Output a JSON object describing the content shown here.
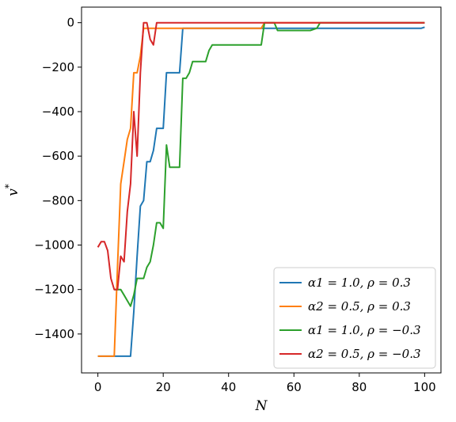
{
  "chart_data": {
    "type": "line",
    "title": "",
    "xlabel": "N",
    "ylabel": "v*",
    "xlim": [
      -5,
      105
    ],
    "ylim": [
      -1575,
      70
    ],
    "xticks": [
      0,
      20,
      40,
      60,
      80,
      100
    ],
    "yticks": [
      0,
      -200,
      -400,
      -600,
      -800,
      -1000,
      -1200,
      -1400
    ],
    "xtick_labels": [
      "0",
      "20",
      "40",
      "60",
      "80",
      "100"
    ],
    "ytick_labels": [
      "0",
      "−200",
      "−400",
      "−600",
      "−800",
      "−1000",
      "−1200",
      "−1400"
    ],
    "grid": false,
    "legend_position": "lower-right",
    "series": [
      {
        "name": "α1 = 1.0, ρ = 0.3",
        "color": "#1f77b4",
        "x": [
          0,
          5,
          9,
          10,
          11,
          12,
          13,
          14,
          15,
          16,
          17,
          18,
          19,
          20,
          21,
          22,
          23,
          24,
          25,
          26,
          27,
          50,
          60,
          80,
          99,
          100
        ],
        "y": [
          -1500,
          -1500,
          -1500,
          -1500,
          -1300,
          -1050,
          -825,
          -800,
          -625,
          -625,
          -575,
          -475,
          -475,
          -475,
          -225,
          -225,
          -225,
          -225,
          -225,
          -25,
          -25,
          -25,
          -25,
          -25,
          -25,
          -20
        ]
      },
      {
        "name": "α2 = 0.5, ρ = 0.3",
        "color": "#ff7f0e",
        "x": [
          0,
          5,
          6,
          7,
          8,
          9,
          10,
          11,
          12,
          13,
          14,
          15,
          16,
          17,
          18,
          30,
          50,
          51,
          60,
          100
        ],
        "y": [
          -1500,
          -1500,
          -1100,
          -725,
          -625,
          -525,
          -475,
          -225,
          -225,
          -150,
          -25,
          -25,
          -25,
          -25,
          -25,
          -25,
          -25,
          0,
          0,
          0
        ]
      },
      {
        "name": "α1 = 1.0, ρ = −0.3",
        "color": "#2ca02c",
        "x": [
          5,
          6,
          7,
          8,
          9,
          10,
          11,
          12,
          13,
          14,
          15,
          16,
          17,
          18,
          19,
          20,
          21,
          22,
          23,
          24,
          25,
          26,
          27,
          28,
          29,
          30,
          31,
          32,
          33,
          34,
          35,
          36,
          40,
          45,
          50,
          51,
          52,
          53,
          54,
          55,
          56,
          60,
          65,
          67,
          68,
          69,
          70,
          80,
          100
        ],
        "y": [
          -1200,
          -1200,
          -1200,
          -1225,
          -1250,
          -1275,
          -1225,
          -1150,
          -1150,
          -1150,
          -1100,
          -1075,
          -1000,
          -900,
          -900,
          -925,
          -550,
          -650,
          -650,
          -650,
          -650,
          -250,
          -250,
          -225,
          -175,
          -175,
          -175,
          -175,
          -175,
          -125,
          -100,
          -100,
          -100,
          -100,
          -100,
          0,
          0,
          0,
          0,
          -35,
          -35,
          -35,
          -35,
          -25,
          0,
          0,
          0,
          0,
          0
        ]
      },
      {
        "name": "α2 = 0.5, ρ = −0.3",
        "color": "#d62728",
        "x": [
          0,
          1,
          2,
          3,
          4,
          5,
          6,
          7,
          8,
          9,
          10,
          11,
          12,
          13,
          14,
          15,
          16,
          17,
          18,
          20,
          30,
          50,
          60,
          80,
          100
        ],
        "y": [
          -1010,
          -985,
          -985,
          -1025,
          -1150,
          -1200,
          -1200,
          -1050,
          -1075,
          -850,
          -725,
          -400,
          -600,
          -225,
          0,
          0,
          -75,
          -100,
          0,
          0,
          0,
          0,
          0,
          0,
          0
        ]
      }
    ]
  }
}
